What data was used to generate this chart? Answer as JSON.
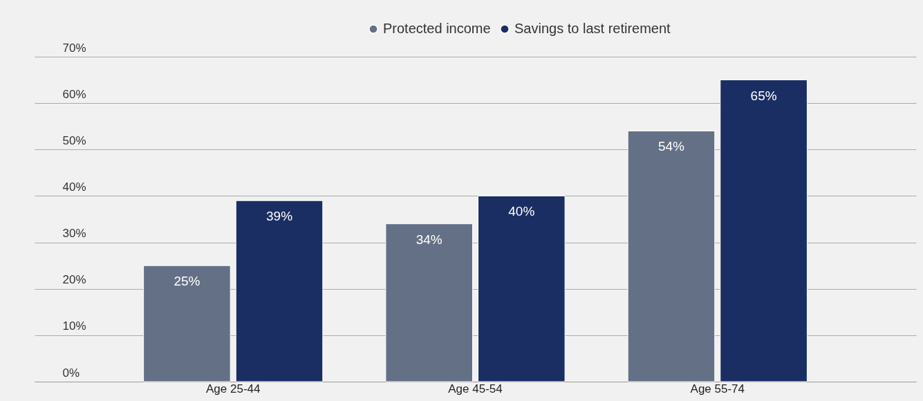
{
  "chart_data": {
    "type": "bar",
    "categories": [
      "Age 25-44",
      "Age 45-54",
      "Age 55-74"
    ],
    "series": [
      {
        "name": "Protected income",
        "color": "#647086",
        "values": [
          25,
          34,
          54
        ],
        "value_labels": [
          "25%",
          "34%",
          "54%"
        ]
      },
      {
        "name": "Savings to last retirement",
        "color": "#1b2e63",
        "values": [
          39,
          40,
          65
        ],
        "value_labels": [
          "39%",
          "40%",
          "65%"
        ]
      }
    ],
    "ylim": [
      0,
      70
    ],
    "yticks": [
      {
        "value": 0,
        "label": "0%"
      },
      {
        "value": 10,
        "label": "10%"
      },
      {
        "value": 20,
        "label": "20%"
      },
      {
        "value": 30,
        "label": "30%"
      },
      {
        "value": 40,
        "label": "40%"
      },
      {
        "value": 50,
        "label": "50%"
      },
      {
        "value": 60,
        "label": "60%"
      },
      {
        "value": 70,
        "label": "70%"
      }
    ],
    "grid": "y",
    "legend": "top right"
  }
}
